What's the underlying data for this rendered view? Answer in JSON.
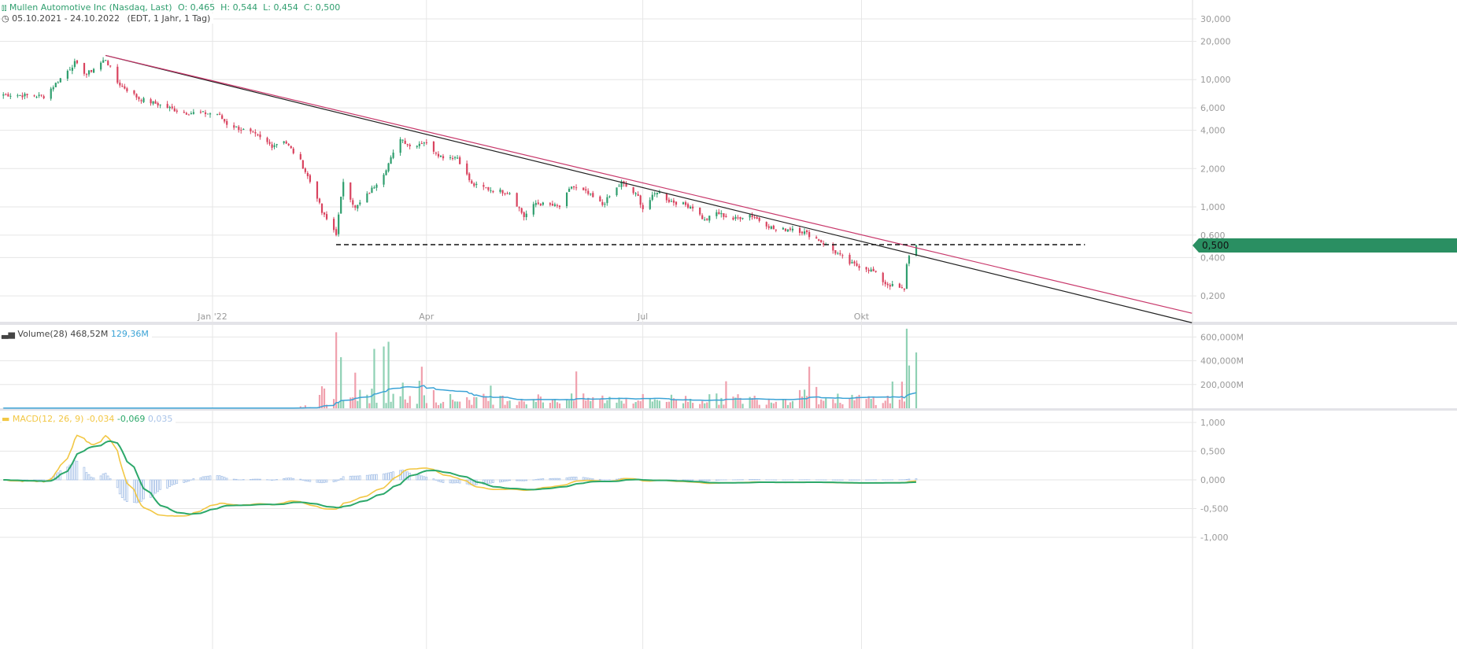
{
  "header": {
    "title": "Mullen Automotive Inc (Nasdaq, Last)",
    "ohlc": "O: 0,465  H: 0,544  L: 0,454  C: 0,500",
    "range": "05.10.2021 - 24.10.2022",
    "range_info": "(EDT, 1 Jahr, 1 Tag)",
    "icon": "candlestick-icon",
    "clock_icon": "clock-icon"
  },
  "colors": {
    "up": "#2f9e6e",
    "down": "#d9435f",
    "title": "#2f9e6e",
    "volume_ma": "#3ba3d6",
    "macd": "#f2c744",
    "signal": "#2ca86a",
    "histogram": "#a9c3e8",
    "trend_black": "#222222",
    "trend_pink": "#c8386b"
  },
  "price_label": "0,500",
  "volume_legend": {
    "label": "Volume(28)",
    "value": "468,52M",
    "ma_value": "129,36M"
  },
  "macd_legend": {
    "label": "MACD(12, 26, 9)",
    "macd": "-0,034",
    "signal": "-0,069",
    "hist": "0,035"
  },
  "chart_data": [
    {
      "type": "candlestick",
      "scale": "log",
      "x_ticks": [
        {
          "date": "2022-01-01",
          "label": "Jan '22"
        },
        {
          "date": "2022-04-01",
          "label": "Apr"
        },
        {
          "date": "2022-07-01",
          "label": "Jul"
        },
        {
          "date": "2022-10-01",
          "label": "Okt"
        }
      ],
      "y_ticks": [
        {
          "v": 30,
          "label": "30,000"
        },
        {
          "v": 20,
          "label": "20,000"
        },
        {
          "v": 10,
          "label": "10,000"
        },
        {
          "v": 6,
          "label": "6,000"
        },
        {
          "v": 4,
          "label": "4,000"
        },
        {
          "v": 2,
          "label": "2,000"
        },
        {
          "v": 1,
          "label": "1,000"
        },
        {
          "v": 0.6,
          "label": "0,600"
        },
        {
          "v": 0.4,
          "label": "0,400"
        },
        {
          "v": 0.2,
          "label": "0,200"
        }
      ],
      "closes": [
        [
          "2021-10-05",
          7.65
        ],
        [
          "2021-10-22",
          7.4
        ],
        [
          "2021-10-29",
          10.2
        ],
        [
          "2021-11-04",
          13.5
        ],
        [
          "2021-11-09",
          11
        ],
        [
          "2021-11-17",
          14.5
        ],
        [
          "2021-11-22",
          9.5
        ],
        [
          "2021-12-01",
          7.1
        ],
        [
          "2021-12-09",
          6.4
        ],
        [
          "2021-12-20",
          5.5
        ],
        [
          "2022-01-03",
          5.4
        ],
        [
          "2022-01-07",
          4.5
        ],
        [
          "2022-01-18",
          3.75
        ],
        [
          "2022-01-26",
          3.03
        ],
        [
          "2022-01-31",
          3.35
        ],
        [
          "2022-02-07",
          2.28
        ],
        [
          "2022-02-14",
          1.2
        ],
        [
          "2022-02-16",
          0.9
        ],
        [
          "2022-02-22",
          0.62
        ],
        [
          "2022-02-25",
          1.6
        ],
        [
          "2022-03-02",
          0.97
        ],
        [
          "2022-03-08",
          1.3
        ],
        [
          "2022-03-14",
          1.85
        ],
        [
          "2022-03-18",
          2.6
        ],
        [
          "2022-03-21",
          3.5
        ],
        [
          "2022-03-25",
          3.0
        ],
        [
          "2022-03-31",
          3.25
        ],
        [
          "2022-04-07",
          2.5
        ],
        [
          "2022-04-14",
          2.45
        ],
        [
          "2022-04-20",
          1.5
        ],
        [
          "2022-04-29",
          1.35
        ],
        [
          "2022-05-06",
          1.3
        ],
        [
          "2022-05-12",
          0.84
        ],
        [
          "2022-05-17",
          1.07
        ],
        [
          "2022-05-27",
          1.0
        ],
        [
          "2022-06-01",
          1.45
        ],
        [
          "2022-06-07",
          1.3
        ],
        [
          "2022-06-14",
          1.04
        ],
        [
          "2022-06-22",
          1.55
        ],
        [
          "2022-06-29",
          1.2
        ],
        [
          "2022-07-01",
          0.97
        ],
        [
          "2022-07-07",
          1.33
        ],
        [
          "2022-07-12",
          1.12
        ],
        [
          "2022-07-22",
          1.0
        ],
        [
          "2022-07-27",
          0.78
        ],
        [
          "2022-08-01",
          0.9
        ],
        [
          "2022-08-08",
          0.8
        ],
        [
          "2022-08-15",
          0.87
        ],
        [
          "2022-08-22",
          0.73
        ],
        [
          "2022-08-26",
          0.65
        ],
        [
          "2022-09-02",
          0.68
        ],
        [
          "2022-09-07",
          0.63
        ],
        [
          "2022-09-13",
          0.55
        ],
        [
          "2022-09-20",
          0.44
        ],
        [
          "2022-09-26",
          0.36
        ],
        [
          "2022-10-03",
          0.33
        ],
        [
          "2022-10-06",
          0.31
        ],
        [
          "2022-10-11",
          0.25
        ],
        [
          "2022-10-17",
          0.23
        ],
        [
          "2022-10-19",
          0.22
        ],
        [
          "2022-10-20",
          0.36
        ],
        [
          "2022-10-21",
          0.41
        ],
        [
          "2022-10-21",
          0.36
        ],
        [
          "2022-10-24",
          0.5
        ]
      ],
      "trendlines": [
        {
          "color": "trend_black",
          "from": [
            "2021-11-17",
            15.5
          ],
          "to": [
            "2023-02-17",
            0.123
          ]
        },
        {
          "color": "trend_pink",
          "from": [
            "2021-11-17",
            15.5
          ],
          "to": [
            "2023-02-17",
            0.146
          ]
        }
      ],
      "support_level": {
        "value": 0.505,
        "from": "2022-02-22",
        "to": "2023-01-03",
        "style": "dashed"
      }
    },
    {
      "type": "bar",
      "title": "Volume(28)",
      "y_ticks": [
        {
          "v": 600,
          "label": "600,000M"
        },
        {
          "v": 400,
          "label": "400,000M"
        },
        {
          "v": 200,
          "label": "200,000M"
        }
      ],
      "baseline_before": {
        "until": "2022-02-15",
        "value": 2
      },
      "baseline_after": 90,
      "spikes": [
        [
          "2022-02-22",
          640
        ],
        [
          "2022-02-24",
          430
        ],
        [
          "2022-03-02",
          300
        ],
        [
          "2022-03-10",
          500
        ],
        [
          "2022-03-14",
          520
        ],
        [
          "2022-03-16",
          560
        ],
        [
          "2022-03-30",
          350
        ],
        [
          "2022-06-03",
          310
        ],
        [
          "2022-09-09",
          350
        ],
        [
          "2022-10-20",
          670
        ],
        [
          "2022-10-21",
          360
        ],
        [
          "2022-10-24",
          470
        ]
      ]
    },
    {
      "type": "line",
      "title": "MACD(12, 26, 9)",
      "y_ticks": [
        {
          "v": 1,
          "label": "1,000"
        },
        {
          "v": 0.5,
          "label": "0,500"
        },
        {
          "v": 0,
          "label": "0,000"
        },
        {
          "v": -0.5,
          "label": "-0,500"
        },
        {
          "v": -1,
          "label": "-1,000"
        }
      ]
    }
  ]
}
